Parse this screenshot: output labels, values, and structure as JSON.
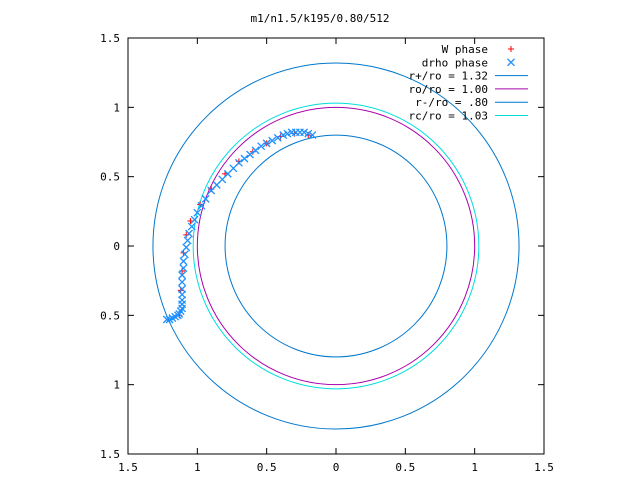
{
  "chart_data": {
    "type": "scatter",
    "title": "m1/n1.5/k195/0.80/512",
    "xlabel": "",
    "ylabel": "",
    "xlim": [
      -1.5,
      1.5
    ],
    "ylim": [
      -1.5,
      1.5
    ],
    "x_ticks": [
      "1.5",
      "1",
      "0.5",
      "0",
      "0.5",
      "1",
      "1.5"
    ],
    "y_ticks": [
      "1.5",
      "1",
      "0.5",
      "0",
      "0.5",
      "1",
      "1.5"
    ],
    "x_tick_values": [
      -1.5,
      -1,
      -0.5,
      0,
      0.5,
      1,
      1.5
    ],
    "y_tick_values": [
      1.5,
      1,
      0.5,
      0,
      -0.5,
      -1,
      -1.5
    ],
    "grid": false,
    "legend_position": "top-right",
    "legend": [
      {
        "label": "W phase",
        "kind": "marker",
        "symbol": "+",
        "color": "#ff0000"
      },
      {
        "label": "drho phase",
        "kind": "marker",
        "symbol": "x",
        "color": "#1e90ff"
      },
      {
        "label": "r+/ro = 1.32",
        "kind": "line",
        "color": "#0077cc"
      },
      {
        "label": "ro/ro = 1.00",
        "kind": "line",
        "color": "#aa00aa"
      },
      {
        "label": "r-/ro = .80",
        "kind": "line",
        "color": "#0077cc"
      },
      {
        "label": "rc/ro = 1.03",
        "kind": "line",
        "color": "#00dddd"
      }
    ],
    "circles": [
      {
        "name": "r+/ro = 1.32",
        "r": 1.32,
        "color": "#0077cc"
      },
      {
        "name": "ro/ro = 1.00",
        "r": 1.0,
        "color": "#aa00aa"
      },
      {
        "name": "r-/ro = .80",
        "r": 0.8,
        "color": "#0077cc"
      },
      {
        "name": "rc/ro = 1.03",
        "r": 1.03,
        "color": "#00dddd"
      }
    ],
    "series": [
      {
        "name": "W phase",
        "symbol": "+",
        "color": "#ff0000",
        "x": [
          -0.2,
          -0.3,
          -0.4,
          -0.5,
          -0.6,
          -0.7,
          -0.8,
          -0.9,
          -0.98,
          -1.05,
          -1.08,
          -1.1,
          -1.11,
          -1.12,
          -1.13
        ],
        "y": [
          0.8,
          0.81,
          0.79,
          0.74,
          0.68,
          0.61,
          0.52,
          0.41,
          0.3,
          0.18,
          0.08,
          -0.05,
          -0.18,
          -0.32,
          -0.5
        ]
      },
      {
        "name": "drho phase",
        "symbol": "x",
        "color": "#1e90ff",
        "x": [
          -0.17,
          -0.2,
          -0.23,
          -0.26,
          -0.29,
          -0.32,
          -0.35,
          -0.38,
          -0.42,
          -0.46,
          -0.5,
          -0.54,
          -0.58,
          -0.62,
          -0.66,
          -0.7,
          -0.74,
          -0.78,
          -0.82,
          -0.86,
          -0.9,
          -0.94,
          -0.97,
          -1.0,
          -1.02,
          -1.04,
          -1.06,
          -1.07,
          -1.08,
          -1.09,
          -1.1,
          -1.1,
          -1.11,
          -1.11,
          -1.11,
          -1.11,
          -1.11,
          -1.11,
          -1.11,
          -1.12,
          -1.13,
          -1.14,
          -1.16,
          -1.18,
          -1.2,
          -1.22
        ],
        "y": [
          0.8,
          0.81,
          0.82,
          0.82,
          0.82,
          0.82,
          0.81,
          0.8,
          0.78,
          0.76,
          0.74,
          0.72,
          0.69,
          0.66,
          0.63,
          0.6,
          0.56,
          0.52,
          0.48,
          0.44,
          0.4,
          0.34,
          0.29,
          0.24,
          0.19,
          0.14,
          0.09,
          0.04,
          -0.01,
          -0.06,
          -0.11,
          -0.16,
          -0.21,
          -0.26,
          -0.31,
          -0.35,
          -0.39,
          -0.42,
          -0.45,
          -0.47,
          -0.49,
          -0.5,
          -0.51,
          -0.52,
          -0.53,
          -0.53
        ]
      }
    ]
  }
}
